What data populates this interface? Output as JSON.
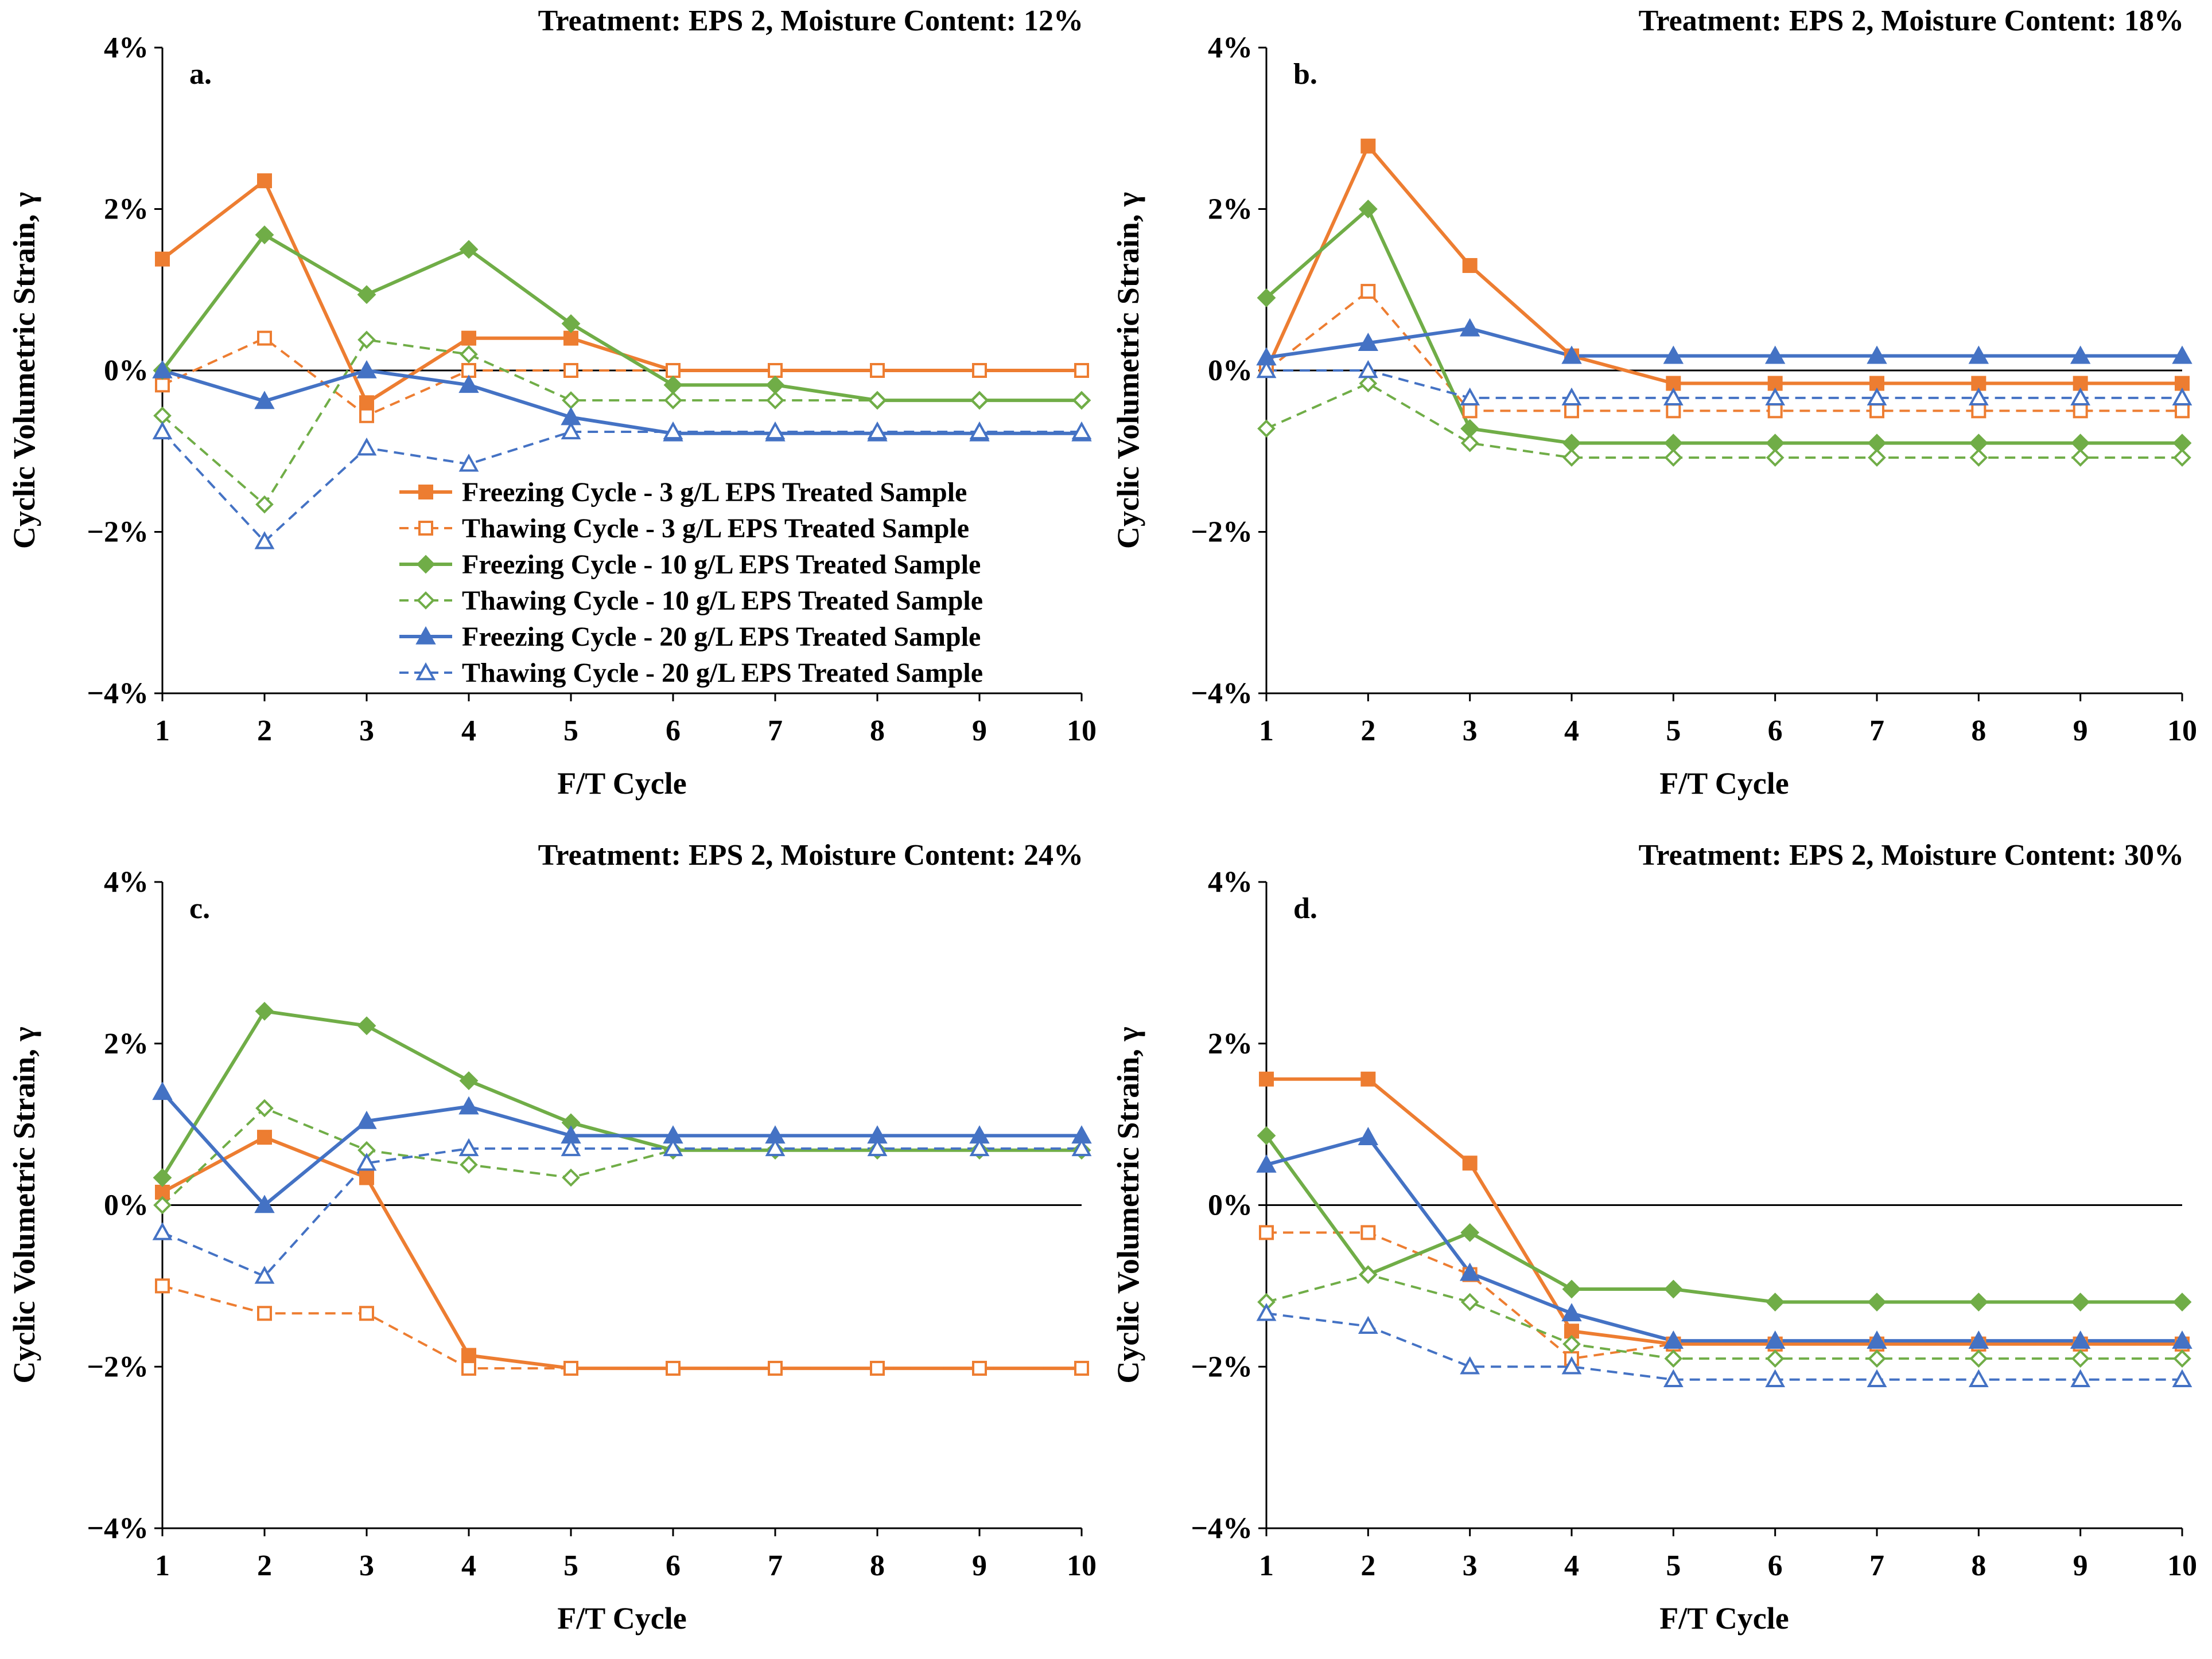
{
  "colors": {
    "orange": "#ED7D31",
    "green": "#70AD47",
    "blue": "#4472C4",
    "axis": "#000000"
  },
  "chart_data": [
    {
      "type": "line",
      "panel": "a.",
      "title": "Treatment: EPS 2, Moisture Content: 12%",
      "xlabel": "F/T Cycle",
      "ylabel": "Cyclic Volumetric Strain, γ",
      "x": [
        1,
        2,
        3,
        4,
        5,
        6,
        7,
        8,
        9,
        10
      ],
      "xlim": [
        1,
        10
      ],
      "ylim": [
        -4,
        4
      ],
      "ytick_values": [
        -4,
        -2,
        0,
        2,
        4
      ],
      "ytick_labels": [
        "−4%",
        "−2%",
        "0%",
        "2%",
        "4%"
      ],
      "legend_position": "bottom-right",
      "series": [
        {
          "name": "Freezing Cycle - 3 g/L EPS Treated Sample",
          "color": "orange",
          "dashed": false,
          "marker": "square-filled",
          "values": [
            1.38,
            2.35,
            -0.4,
            0.4,
            0.4,
            0.0,
            0.0,
            0.0,
            0.0,
            0.0
          ]
        },
        {
          "name": "Thawing Cycle - 3 g/L EPS Treated Sample",
          "color": "orange",
          "dashed": true,
          "marker": "square-open",
          "values": [
            -0.18,
            0.4,
            -0.56,
            0.0,
            0.0,
            0.0,
            0.0,
            0.0,
            0.0,
            0.0
          ]
        },
        {
          "name": "Freezing Cycle - 10 g/L EPS Treated Sample",
          "color": "green",
          "dashed": false,
          "marker": "diamond-filled",
          "values": [
            0.0,
            1.68,
            0.94,
            1.5,
            0.58,
            -0.18,
            -0.18,
            -0.37,
            -0.37,
            -0.37
          ]
        },
        {
          "name": "Thawing Cycle - 10 g/L EPS Treated Sample",
          "color": "green",
          "dashed": true,
          "marker": "diamond-open",
          "values": [
            -0.56,
            -1.66,
            0.38,
            0.2,
            -0.37,
            -0.37,
            -0.37,
            -0.37,
            -0.37,
            -0.37
          ]
        },
        {
          "name": "Freezing Cycle - 20 g/L EPS Treated Sample",
          "color": "blue",
          "dashed": false,
          "marker": "triangle-filled",
          "values": [
            0.0,
            -0.38,
            0.0,
            -0.18,
            -0.58,
            -0.78,
            -0.78,
            -0.78,
            -0.78,
            -0.78
          ]
        },
        {
          "name": "Thawing Cycle - 20 g/L EPS Treated Sample",
          "color": "blue",
          "dashed": true,
          "marker": "triangle-open",
          "values": [
            -0.76,
            -2.12,
            -0.96,
            -1.16,
            -0.76,
            -0.76,
            -0.76,
            -0.76,
            -0.76,
            -0.76
          ]
        }
      ]
    },
    {
      "type": "line",
      "panel": "b.",
      "title": "Treatment: EPS 2, Moisture Content: 18%",
      "xlabel": "F/T Cycle",
      "ylabel": "Cyclic Volumetric Strain, γ",
      "x": [
        1,
        2,
        3,
        4,
        5,
        6,
        7,
        8,
        9,
        10
      ],
      "xlim": [
        1,
        10
      ],
      "ylim": [
        -4,
        4
      ],
      "ytick_values": [
        -4,
        -2,
        0,
        2,
        4
      ],
      "ytick_labels": [
        "−4%",
        "−2%",
        "0%",
        "2%",
        "4%"
      ],
      "series": [
        {
          "name": "Freezing Cycle - 3 g/L EPS Treated Sample",
          "color": "orange",
          "dashed": false,
          "marker": "square-filled",
          "values": [
            0.0,
            2.78,
            1.3,
            0.18,
            -0.16,
            -0.16,
            -0.16,
            -0.16,
            -0.16,
            -0.16
          ]
        },
        {
          "name": "Thawing Cycle - 3 g/L EPS Treated Sample",
          "color": "orange",
          "dashed": true,
          "marker": "square-open",
          "values": [
            0.0,
            0.98,
            -0.5,
            -0.5,
            -0.5,
            -0.5,
            -0.5,
            -0.5,
            -0.5,
            -0.5
          ]
        },
        {
          "name": "Freezing Cycle - 10 g/L EPS Treated Sample",
          "color": "green",
          "dashed": false,
          "marker": "diamond-filled",
          "values": [
            0.9,
            2.0,
            -0.72,
            -0.9,
            -0.9,
            -0.9,
            -0.9,
            -0.9,
            -0.9,
            -0.9
          ]
        },
        {
          "name": "Thawing Cycle - 10 g/L EPS Treated Sample",
          "color": "green",
          "dashed": true,
          "marker": "diamond-open",
          "values": [
            -0.72,
            -0.16,
            -0.9,
            -1.08,
            -1.08,
            -1.08,
            -1.08,
            -1.08,
            -1.08,
            -1.08
          ]
        },
        {
          "name": "Freezing Cycle - 20 g/L EPS Treated Sample",
          "color": "blue",
          "dashed": false,
          "marker": "triangle-filled",
          "values": [
            0.16,
            0.34,
            0.52,
            0.18,
            0.18,
            0.18,
            0.18,
            0.18,
            0.18,
            0.18
          ]
        },
        {
          "name": "Thawing Cycle - 20 g/L EPS Treated Sample",
          "color": "blue",
          "dashed": true,
          "marker": "triangle-open",
          "values": [
            0.0,
            0.0,
            -0.34,
            -0.34,
            -0.34,
            -0.34,
            -0.34,
            -0.34,
            -0.34,
            -0.34
          ]
        }
      ]
    },
    {
      "type": "line",
      "panel": "c.",
      "title": "Treatment: EPS 2, Moisture Content: 24%",
      "xlabel": "F/T Cycle",
      "ylabel": "Cyclic Volumetric Strain, γ",
      "x": [
        1,
        2,
        3,
        4,
        5,
        6,
        7,
        8,
        9,
        10
      ],
      "xlim": [
        1,
        10
      ],
      "ylim": [
        -4,
        4
      ],
      "ytick_values": [
        -4,
        -2,
        0,
        2,
        4
      ],
      "ytick_labels": [
        "−4%",
        "−2%",
        "0%",
        "2%",
        "4%"
      ],
      "series": [
        {
          "name": "Freezing Cycle - 3 g/L EPS Treated Sample",
          "color": "orange",
          "dashed": false,
          "marker": "square-filled",
          "values": [
            0.16,
            0.84,
            0.34,
            -1.86,
            -2.02,
            -2.02,
            -2.02,
            -2.02,
            -2.02,
            -2.02
          ]
        },
        {
          "name": "Thawing Cycle - 3 g/L EPS Treated Sample",
          "color": "orange",
          "dashed": true,
          "marker": "square-open",
          "values": [
            -1.0,
            -1.34,
            -1.34,
            -2.02,
            -2.02,
            -2.02,
            -2.02,
            -2.02,
            -2.02,
            -2.02
          ]
        },
        {
          "name": "Freezing Cycle - 10 g/L EPS Treated Sample",
          "color": "green",
          "dashed": false,
          "marker": "diamond-filled",
          "values": [
            0.34,
            2.4,
            2.22,
            1.54,
            1.02,
            0.68,
            0.68,
            0.68,
            0.68,
            0.68
          ]
        },
        {
          "name": "Thawing Cycle - 10 g/L EPS Treated Sample",
          "color": "green",
          "dashed": true,
          "marker": "diamond-open",
          "values": [
            0.0,
            1.2,
            0.68,
            0.5,
            0.34,
            0.68,
            0.68,
            0.68,
            0.68,
            0.68
          ]
        },
        {
          "name": "Freezing Cycle - 20 g/L EPS Treated Sample",
          "color": "blue",
          "dashed": false,
          "marker": "triangle-filled",
          "values": [
            1.4,
            0.0,
            1.04,
            1.22,
            0.86,
            0.86,
            0.86,
            0.86,
            0.86,
            0.86
          ]
        },
        {
          "name": "Thawing Cycle - 20 g/L EPS Treated Sample",
          "color": "blue",
          "dashed": true,
          "marker": "triangle-open",
          "values": [
            -0.34,
            -0.88,
            0.52,
            0.7,
            0.7,
            0.7,
            0.7,
            0.7,
            0.7,
            0.7
          ]
        }
      ]
    },
    {
      "type": "line",
      "panel": "d.",
      "title": "Treatment: EPS 2, Moisture Content: 30%",
      "xlabel": "F/T Cycle",
      "ylabel": "Cyclic Volumetric Strain, γ",
      "x": [
        1,
        2,
        3,
        4,
        5,
        6,
        7,
        8,
        9,
        10
      ],
      "xlim": [
        1,
        10
      ],
      "ylim": [
        -4,
        4
      ],
      "ytick_values": [
        -4,
        -2,
        0,
        2,
        4
      ],
      "ytick_labels": [
        "−4%",
        "−2%",
        "0%",
        "2%",
        "4%"
      ],
      "series": [
        {
          "name": "Freezing Cycle - 3 g/L EPS Treated Sample",
          "color": "orange",
          "dashed": false,
          "marker": "square-filled",
          "values": [
            1.56,
            1.56,
            0.52,
            -1.56,
            -1.72,
            -1.72,
            -1.72,
            -1.72,
            -1.72,
            -1.72
          ]
        },
        {
          "name": "Thawing Cycle - 3 g/L EPS Treated Sample",
          "color": "orange",
          "dashed": true,
          "marker": "square-open",
          "values": [
            -0.34,
            -0.34,
            -0.86,
            -1.9,
            -1.72,
            -1.72,
            -1.72,
            -1.72,
            -1.72,
            -1.72
          ]
        },
        {
          "name": "Freezing Cycle - 10 g/L EPS Treated Sample",
          "color": "green",
          "dashed": false,
          "marker": "diamond-filled",
          "values": [
            0.86,
            -0.86,
            -0.34,
            -1.04,
            -1.04,
            -1.2,
            -1.2,
            -1.2,
            -1.2,
            -1.2
          ]
        },
        {
          "name": "Thawing Cycle - 10 g/L EPS Treated Sample",
          "color": "green",
          "dashed": true,
          "marker": "diamond-open",
          "values": [
            -1.2,
            -0.86,
            -1.2,
            -1.72,
            -1.9,
            -1.9,
            -1.9,
            -1.9,
            -1.9,
            -1.9
          ]
        },
        {
          "name": "Freezing Cycle - 20 g/L EPS Treated Sample",
          "color": "blue",
          "dashed": false,
          "marker": "triangle-filled",
          "values": [
            0.5,
            0.84,
            -0.84,
            -1.34,
            -1.68,
            -1.68,
            -1.68,
            -1.68,
            -1.68,
            -1.68
          ]
        },
        {
          "name": "Thawing Cycle - 20 g/L EPS Treated Sample",
          "color": "blue",
          "dashed": true,
          "marker": "triangle-open",
          "values": [
            -1.34,
            -1.5,
            -2.0,
            -2.0,
            -2.16,
            -2.16,
            -2.16,
            -2.16,
            -2.16,
            -2.16
          ]
        }
      ]
    }
  ]
}
